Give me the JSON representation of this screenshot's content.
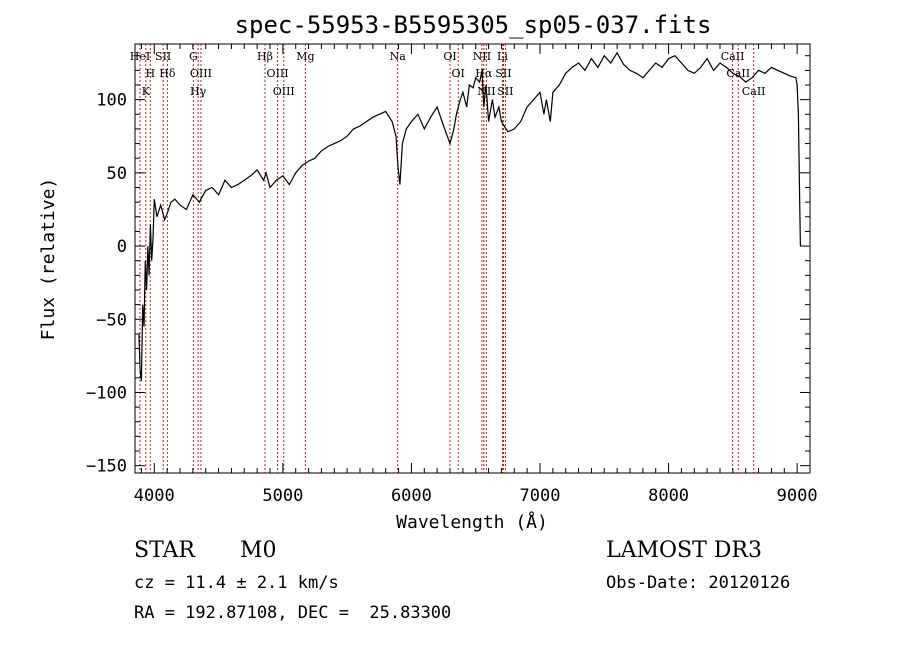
{
  "chart_data": {
    "type": "line",
    "title": "spec-55953-B5595305_sp05-037.fits",
    "xlabel": "Wavelength (Å)",
    "ylabel": "Flux (relative)",
    "xlim": [
      3850,
      9100
    ],
    "ylim": [
      -155,
      138
    ],
    "xticks": [
      4000,
      5000,
      6000,
      7000,
      8000,
      9000
    ],
    "yticks": [
      -150,
      -100,
      -50,
      0,
      50,
      100
    ],
    "grid": false,
    "series": [
      {
        "line_color": "#000000",
        "x": [
          3880,
          3890,
          3900,
          3910,
          3920,
          3930,
          3940,
          3950,
          3960,
          3970,
          3980,
          3990,
          4000,
          4020,
          4050,
          4080,
          4100,
          4130,
          4160,
          4200,
          4250,
          4300,
          4350,
          4400,
          4450,
          4500,
          4550,
          4600,
          4650,
          4700,
          4750,
          4800,
          4850,
          4870,
          4900,
          4950,
          5000,
          5050,
          5100,
          5150,
          5200,
          5250,
          5300,
          5350,
          5400,
          5450,
          5500,
          5550,
          5600,
          5650,
          5700,
          5750,
          5800,
          5850,
          5880,
          5895,
          5910,
          5930,
          5960,
          6000,
          6050,
          6100,
          6150,
          6200,
          6250,
          6300,
          6330,
          6350,
          6380,
          6400,
          6430,
          6450,
          6480,
          6500,
          6530,
          6550,
          6563,
          6580,
          6600,
          6630,
          6650,
          6680,
          6700,
          6750,
          6800,
          6850,
          6900,
          6950,
          7000,
          7030,
          7050,
          7080,
          7100,
          7150,
          7200,
          7250,
          7300,
          7350,
          7400,
          7450,
          7500,
          7550,
          7600,
          7650,
          7700,
          7750,
          7800,
          7850,
          7900,
          7950,
          8000,
          8050,
          8100,
          8150,
          8200,
          8250,
          8300,
          8350,
          8400,
          8450,
          8500,
          8550,
          8600,
          8650,
          8700,
          8750,
          8800,
          8850,
          8900,
          8950,
          8990,
          9000,
          9010,
          9020,
          9025
        ],
        "y": [
          -60,
          -85,
          -92,
          -40,
          -55,
          -10,
          -30,
          0,
          -20,
          15,
          -10,
          5,
          32,
          20,
          28,
          18,
          22,
          30,
          32,
          28,
          25,
          35,
          30,
          38,
          40,
          35,
          45,
          40,
          42,
          45,
          48,
          52,
          45,
          50,
          40,
          45,
          48,
          42,
          50,
          55,
          58,
          60,
          65,
          68,
          70,
          72,
          75,
          80,
          82,
          85,
          88,
          90,
          92,
          85,
          75,
          55,
          42,
          70,
          80,
          85,
          90,
          80,
          88,
          95,
          82,
          70,
          80,
          90,
          100,
          105,
          95,
          110,
          108,
          115,
          112,
          120,
          95,
          110,
          85,
          100,
          88,
          95,
          85,
          78,
          80,
          85,
          95,
          100,
          105,
          90,
          100,
          85,
          105,
          110,
          118,
          122,
          125,
          120,
          128,
          122,
          130,
          125,
          132,
          124,
          120,
          118,
          115,
          120,
          125,
          122,
          128,
          130,
          125,
          120,
          118,
          122,
          128,
          120,
          125,
          122,
          118,
          116,
          112,
          115,
          120,
          118,
          122,
          120,
          118,
          116,
          115,
          110,
          90,
          30,
          0
        ]
      }
    ],
    "line_markers": [
      {
        "label": "HeI",
        "wavelength": 3889
      },
      {
        "label": "H",
        "wavelength": 3969
      },
      {
        "label": "K",
        "wavelength": 3934
      },
      {
        "label": "SII",
        "wavelength": 4069
      },
      {
        "label": "Hδ",
        "wavelength": 4102
      },
      {
        "label": "G",
        "wavelength": 4304
      },
      {
        "label": "OIII",
        "wavelength": 4363
      },
      {
        "label": "Hγ",
        "wavelength": 4341
      },
      {
        "label": "Hβ",
        "wavelength": 4861
      },
      {
        "label": "OIII",
        "wavelength": 4959
      },
      {
        "label": "OIII",
        "wavelength": 5007
      },
      {
        "label": "Mg",
        "wavelength": 5175
      },
      {
        "label": "Na",
        "wavelength": 5893
      },
      {
        "label": "OI",
        "wavelength": 6300
      },
      {
        "label": "OI",
        "wavelength": 6364
      },
      {
        "label": "NII",
        "wavelength": 6548
      },
      {
        "label": "Hα",
        "wavelength": 6563
      },
      {
        "label": "NII",
        "wavelength": 6583
      },
      {
        "label": "Li",
        "wavelength": 6708
      },
      {
        "label": "SII",
        "wavelength": 6716
      },
      {
        "label": "SII",
        "wavelength": 6731
      },
      {
        "label": "CaII",
        "wavelength": 8498
      },
      {
        "label": "CaII",
        "wavelength": 8542
      },
      {
        "label": "CaII",
        "wavelength": 8662
      }
    ]
  },
  "footer": {
    "class": "STAR",
    "subclass": "M0",
    "survey": "LAMOST DR3",
    "redshift": "cz = 11.4 ± 2.1 km/s",
    "obs_date": "Obs-Date: 20120126",
    "coords": "RA = 192.87108, DEC =  25.83300"
  }
}
